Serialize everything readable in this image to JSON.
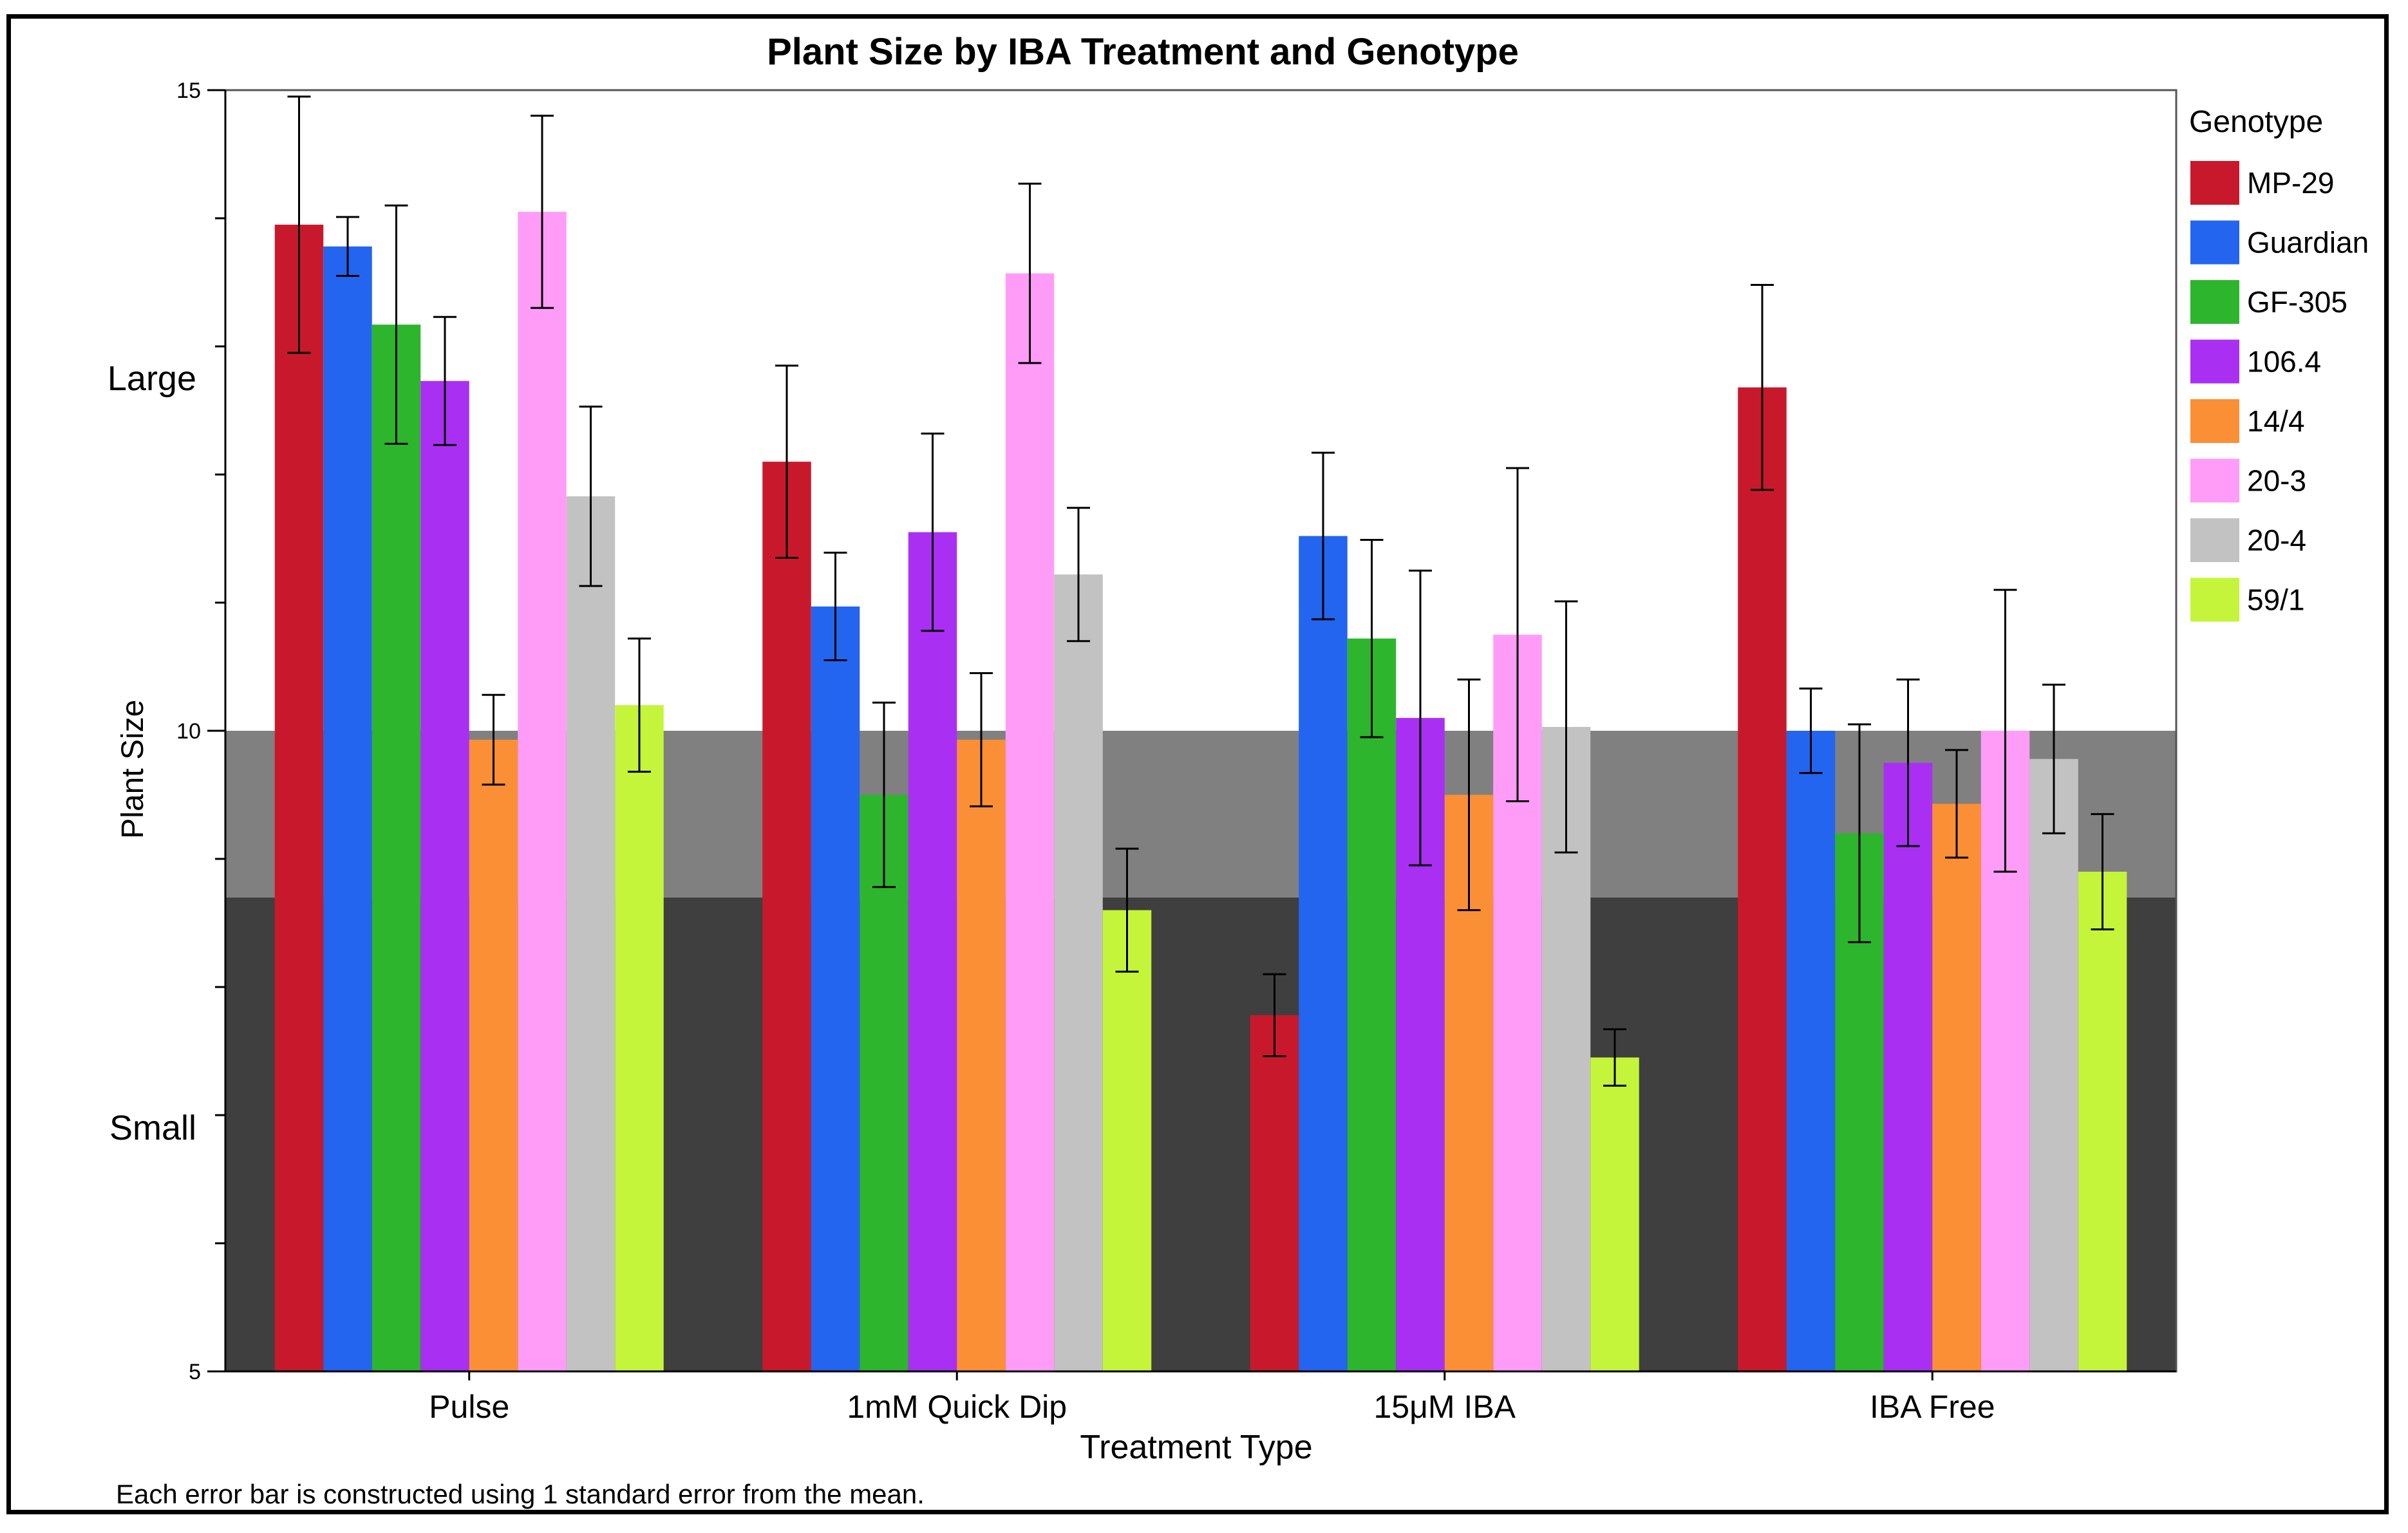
{
  "chart_data": {
    "type": "bar",
    "title": "Plant Size by IBA Treatment and Genotype",
    "xlabel": "Treatment Type",
    "ylabel": "Plant Size",
    "ylim": [
      5,
      15
    ],
    "yticks": [
      "5",
      "10",
      "15"
    ],
    "y_category_labels": [
      {
        "text": "Large",
        "value": 12.75
      },
      {
        "text": "Small",
        "value": 6.9
      }
    ],
    "background_bands": [
      {
        "from": 5,
        "to": 8.7,
        "color": "#3f3f3f"
      },
      {
        "from": 8.7,
        "to": 10,
        "color": "#808080"
      },
      {
        "from": 10,
        "to": 15,
        "color": "#ffffff"
      }
    ],
    "categories": [
      "Pulse",
      "1mM Quick Dip",
      "15μM IBA",
      "IBA Free"
    ],
    "legend_title": "Genotype",
    "series": [
      {
        "name": "MP-29",
        "color": "#c8192c",
        "values": [
          13.95,
          12.1,
          7.78,
          12.68
        ],
        "errors": [
          1.0,
          0.75,
          0.32,
          0.8
        ]
      },
      {
        "name": "Guardian",
        "color": "#2365ee",
        "values": [
          13.78,
          10.97,
          11.52,
          10.0
        ],
        "errors": [
          0.23,
          0.42,
          0.65,
          0.33
        ]
      },
      {
        "name": "GF-305",
        "color": "#2db52d",
        "values": [
          13.17,
          9.5,
          10.72,
          9.2
        ],
        "errors": [
          0.93,
          0.72,
          0.77,
          0.85
        ]
      },
      {
        "name": "106.4",
        "color": "#a930f2",
        "values": [
          12.73,
          11.55,
          10.1,
          9.75
        ],
        "errors": [
          0.5,
          0.77,
          1.15,
          0.65
        ]
      },
      {
        "name": "14/4",
        "color": "#fb8f35",
        "values": [
          9.93,
          9.93,
          9.5,
          9.43
        ],
        "errors": [
          0.35,
          0.52,
          0.9,
          0.42
        ]
      },
      {
        "name": "20-3",
        "color": "#ff9cf8",
        "values": [
          14.05,
          13.57,
          10.75,
          10.0
        ],
        "errors": [
          0.75,
          0.7,
          1.3,
          1.1
        ]
      },
      {
        "name": "20-4",
        "color": "#c2c2c2",
        "values": [
          11.83,
          11.22,
          10.03,
          9.78
        ],
        "errors": [
          0.7,
          0.52,
          0.98,
          0.58
        ]
      },
      {
        "name": "59/1",
        "color": "#c5f53a",
        "values": [
          10.2,
          8.6,
          7.45,
          8.9
        ],
        "errors": [
          0.52,
          0.48,
          0.22,
          0.45
        ]
      }
    ],
    "legend": "right",
    "footnote": "Each error bar is constructed using 1 standard error from the mean."
  }
}
